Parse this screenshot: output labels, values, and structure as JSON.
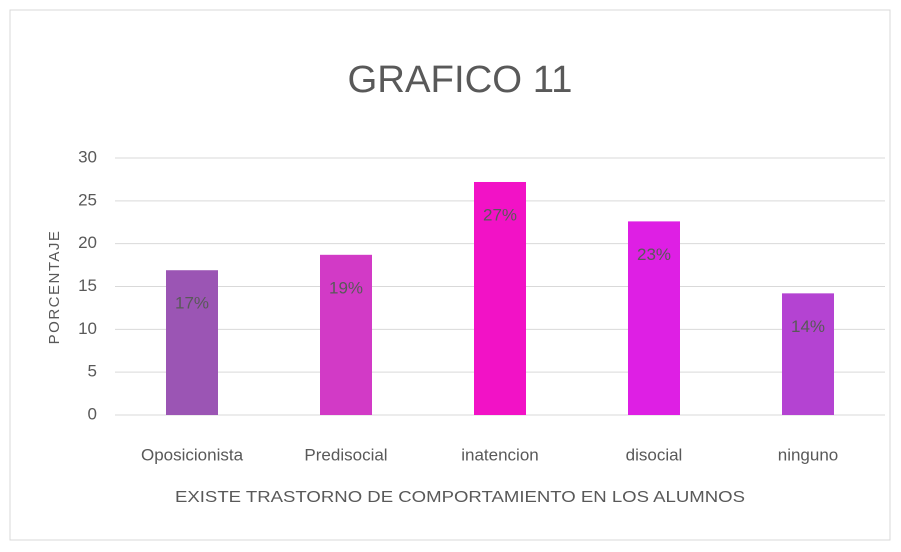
{
  "chart_data": {
    "type": "bar",
    "title": "GRAFICO 11",
    "x_label": "EXISTE TRASTORNO DE COMPORTAMIENTO EN LOS ALUMNOS",
    "y_label": "PORCENTAJE",
    "categories": [
      "Oposicionista",
      "Predisocial",
      "inatencion",
      "disocial",
      "ninguno"
    ],
    "values": [
      16.9,
      18.7,
      27.2,
      22.6,
      14.2
    ],
    "value_labels": [
      "17%",
      "19%",
      "27%",
      "23%",
      "14%"
    ],
    "colors": [
      "#9b55b4",
      "#d23ac6",
      "#f212c6",
      "#de1fe4",
      "#b443d2"
    ],
    "ylim": [
      0,
      30
    ],
    "yticks": [
      0,
      5,
      10,
      15,
      20,
      25,
      30
    ],
    "grid": true
  }
}
